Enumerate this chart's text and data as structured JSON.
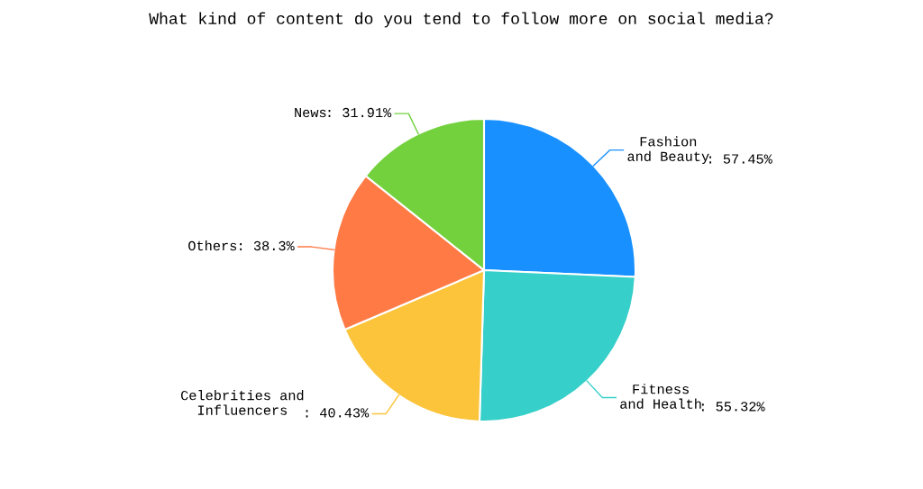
{
  "chart_data": {
    "type": "pie",
    "title": "What kind of content do you tend to follow more on social media?",
    "categories": [
      "Fashion\nand Beauty",
      "Fitness\nand Health",
      "Celebrities and\nInfluencers",
      "Others",
      "News"
    ],
    "values": [
      57.45,
      55.32,
      40.43,
      38.3,
      31.91
    ],
    "value_labels": [
      ": 57.45%",
      ": 55.32%",
      ": 40.43%",
      ": 38.3%",
      ": 31.91%"
    ],
    "colors": [
      "#1890ff",
      "#36cfc9",
      "#fbc43a",
      "#ff7a45",
      "#73d13d"
    ],
    "legend": false
  }
}
